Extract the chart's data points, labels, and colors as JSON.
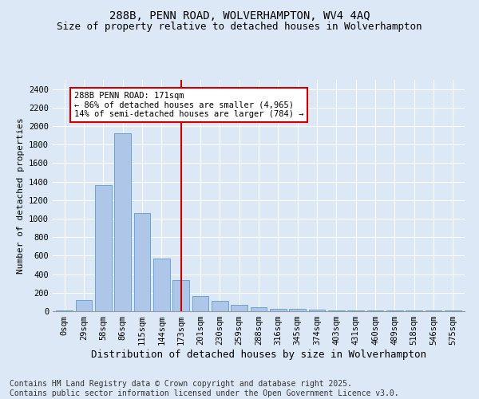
{
  "title": "288B, PENN ROAD, WOLVERHAMPTON, WV4 4AQ",
  "subtitle": "Size of property relative to detached houses in Wolverhampton",
  "xlabel": "Distribution of detached houses by size in Wolverhampton",
  "ylabel": "Number of detached properties",
  "categories": [
    "0sqm",
    "29sqm",
    "58sqm",
    "86sqm",
    "115sqm",
    "144sqm",
    "173sqm",
    "201sqm",
    "230sqm",
    "259sqm",
    "288sqm",
    "316sqm",
    "345sqm",
    "374sqm",
    "403sqm",
    "431sqm",
    "460sqm",
    "489sqm",
    "518sqm",
    "546sqm",
    "575sqm"
  ],
  "values": [
    10,
    125,
    1360,
    1920,
    1060,
    570,
    335,
    165,
    110,
    65,
    40,
    30,
    25,
    20,
    10,
    8,
    7,
    7,
    5,
    5,
    10
  ],
  "bar_color": "#aec6e8",
  "bar_edge_color": "#5b9bd5",
  "vline_x": 6,
  "vline_color": "#cc0000",
  "annotation_text": "288B PENN ROAD: 171sqm\n← 86% of detached houses are smaller (4,965)\n14% of semi-detached houses are larger (784) →",
  "annotation_box_color": "#ffffff",
  "annotation_box_edge_color": "#cc0000",
  "ylim": [
    0,
    2500
  ],
  "yticks": [
    0,
    200,
    400,
    600,
    800,
    1000,
    1200,
    1400,
    1600,
    1800,
    2000,
    2200,
    2400
  ],
  "background_color": "#dce8f5",
  "grid_color": "#ffffff",
  "footer_line1": "Contains HM Land Registry data © Crown copyright and database right 2025.",
  "footer_line2": "Contains public sector information licensed under the Open Government Licence v3.0.",
  "title_fontsize": 10,
  "subtitle_fontsize": 9,
  "xlabel_fontsize": 9,
  "ylabel_fontsize": 8,
  "tick_fontsize": 7.5,
  "annotation_fontsize": 7.5,
  "footer_fontsize": 7
}
